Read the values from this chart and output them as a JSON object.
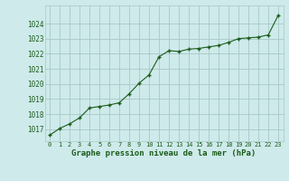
{
  "x": [
    0,
    1,
    2,
    3,
    4,
    5,
    6,
    7,
    8,
    9,
    10,
    11,
    12,
    13,
    14,
    15,
    16,
    17,
    18,
    19,
    20,
    21,
    22,
    23
  ],
  "y": [
    1016.6,
    1017.05,
    1017.35,
    1017.75,
    1018.4,
    1018.5,
    1018.6,
    1018.75,
    1019.35,
    1020.05,
    1020.6,
    1021.8,
    1022.2,
    1022.15,
    1022.3,
    1022.35,
    1022.45,
    1022.55,
    1022.75,
    1023.0,
    1023.05,
    1023.1,
    1023.25,
    1024.55
  ],
  "line_color": "#1a5c1a",
  "marker": "P",
  "marker_size": 2.5,
  "bg_color": "#ceeaea",
  "grid_color": "#a8c8c8",
  "xlabel": "Graphe pression niveau de la mer (hPa)",
  "xlabel_color": "#1a5c1a",
  "tick_color": "#1a5c1a",
  "ylim": [
    1016.2,
    1025.2
  ],
  "yticks": [
    1017,
    1018,
    1019,
    1020,
    1021,
    1022,
    1023,
    1024
  ],
  "xlim": [
    -0.5,
    23.5
  ],
  "xticks": [
    0,
    1,
    2,
    3,
    4,
    5,
    6,
    7,
    8,
    9,
    10,
    11,
    12,
    13,
    14,
    15,
    16,
    17,
    18,
    19,
    20,
    21,
    22,
    23
  ]
}
